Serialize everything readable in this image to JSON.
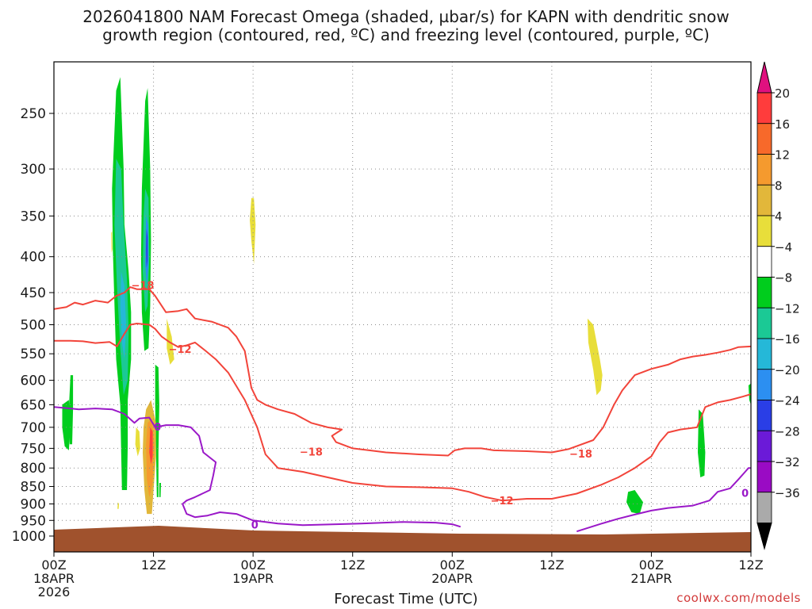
{
  "chart_data": {
    "type": "heatmap",
    "title_line1": "2026041800 NAM Forecast Omega (shaded, µbar/s) for KAPN with dendritic snow",
    "title_line2": "growth region (contoured, red, ºC) and freezing level (contoured, purple, ºC)",
    "xlabel": "Forecast Time (UTC)",
    "credit": "coolwx.com/models",
    "x_ticks": [
      {
        "hour": 0,
        "label": "00Z",
        "date": "18APR",
        "year": "2026"
      },
      {
        "hour": 12,
        "label": "12Z",
        "date": "",
        "year": ""
      },
      {
        "hour": 24,
        "label": "00Z",
        "date": "19APR",
        "year": ""
      },
      {
        "hour": 36,
        "label": "12Z",
        "date": "",
        "year": ""
      },
      {
        "hour": 48,
        "label": "00Z",
        "date": "20APR",
        "year": ""
      },
      {
        "hour": 60,
        "label": "12Z",
        "date": "",
        "year": ""
      },
      {
        "hour": 72,
        "label": "00Z",
        "date": "21APR",
        "year": ""
      },
      {
        "hour": 84,
        "label": "12Z",
        "date": "",
        "year": ""
      }
    ],
    "x_range_hours": [
      0,
      84
    ],
    "y_ticks": [
      250,
      300,
      350,
      400,
      450,
      500,
      550,
      600,
      650,
      700,
      750,
      800,
      850,
      900,
      950,
      1000
    ],
    "y_range_hPa": [
      200,
      1050
    ],
    "y_scale": "log",
    "grid": true,
    "colorbar": {
      "labels": [
        "20",
        "16",
        "12",
        "8",
        "4",
        "−4",
        "−8",
        "−12",
        "−16",
        "−20",
        "−24",
        "−28",
        "−32",
        "−36"
      ],
      "bands": [
        "#ff3c3c",
        "#f7692a",
        "#f59a2e",
        "#e2b73a",
        "#e8de3a",
        "#ffffff",
        "#00cd1d",
        "#1bc995",
        "#25b8d8",
        "#2c8ff1",
        "#2a3ee6",
        "#6b1ad8",
        "#9a0bc4",
        "#aaaaaa"
      ],
      "over_color": "#e0117f",
      "under_color": "#000000"
    },
    "terrain_color": "#a0522d",
    "contours": {
      "dendritic_color": "#f2443a",
      "freezing_color": "#9a18c8",
      "labels": [
        {
          "text": "−18",
          "hour": 10.7,
          "p": 440
        },
        {
          "text": "−12",
          "hour": 15.2,
          "p": 543
        },
        {
          "text": "−18",
          "hour": 31.0,
          "p": 760
        },
        {
          "text": "−18",
          "hour": 63.5,
          "p": 765
        },
        {
          "text": "−12",
          "hour": 54.0,
          "p": 892
        },
        {
          "text": "0",
          "hour": 12.5,
          "p": 700
        },
        {
          "text": "0",
          "hour": 24.2,
          "p": 965
        },
        {
          "text": "0",
          "hour": 83.3,
          "p": 870
        }
      ]
    }
  }
}
